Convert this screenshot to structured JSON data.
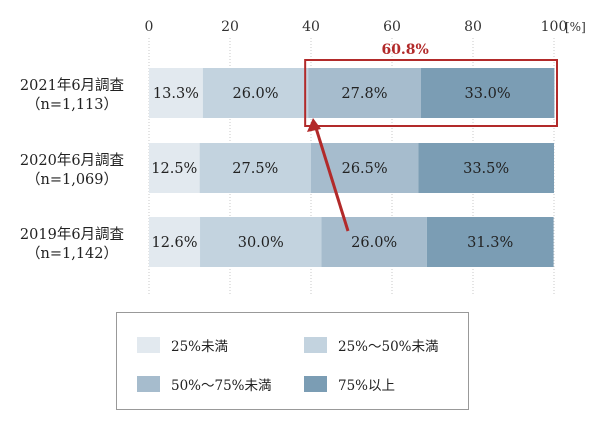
{
  "chart_data": {
    "type": "bar",
    "orientation": "horizontal",
    "stacked": true,
    "categories": [
      "2021年6月調査\n（n=1,113）",
      "2020年6月調査\n（n=1,069）",
      "2019年6月調査\n（n=1,142）"
    ],
    "series": [
      {
        "name": "25%未満",
        "values": [
          13.3,
          12.5,
          12.6
        ],
        "labels": [
          "13.3%",
          "12.5%",
          "12.6%"
        ],
        "color": "#e2e9ef"
      },
      {
        "name": "25%～50%未満",
        "values": [
          26.0,
          27.5,
          30.0
        ],
        "labels": [
          "26.0%",
          "27.5%",
          "30.0%"
        ],
        "color": "#c3d3df"
      },
      {
        "name": "50%～75%未満",
        "values": [
          27.8,
          26.5,
          26.0
        ],
        "labels": [
          "27.8%",
          "26.5%",
          "26.0%"
        ],
        "color": "#a6bccd"
      },
      {
        "name": "75%以上",
        "values": [
          33.0,
          33.5,
          31.3
        ],
        "labels": [
          "33.0%",
          "33.5%",
          "31.3%"
        ],
        "color": "#7b9db4"
      }
    ],
    "xlim": [
      0,
      100
    ],
    "x_ticks": [
      0,
      20,
      40,
      60,
      80,
      100
    ],
    "x_tick_labels": [
      "0",
      "20",
      "40",
      "60",
      "80",
      "100"
    ],
    "x_unit": "[%]",
    "grid": "vertical dotted",
    "annotation": {
      "text": "60.8%",
      "color": "#b22a2a"
    },
    "legend": {
      "placement": "bottom"
    }
  }
}
